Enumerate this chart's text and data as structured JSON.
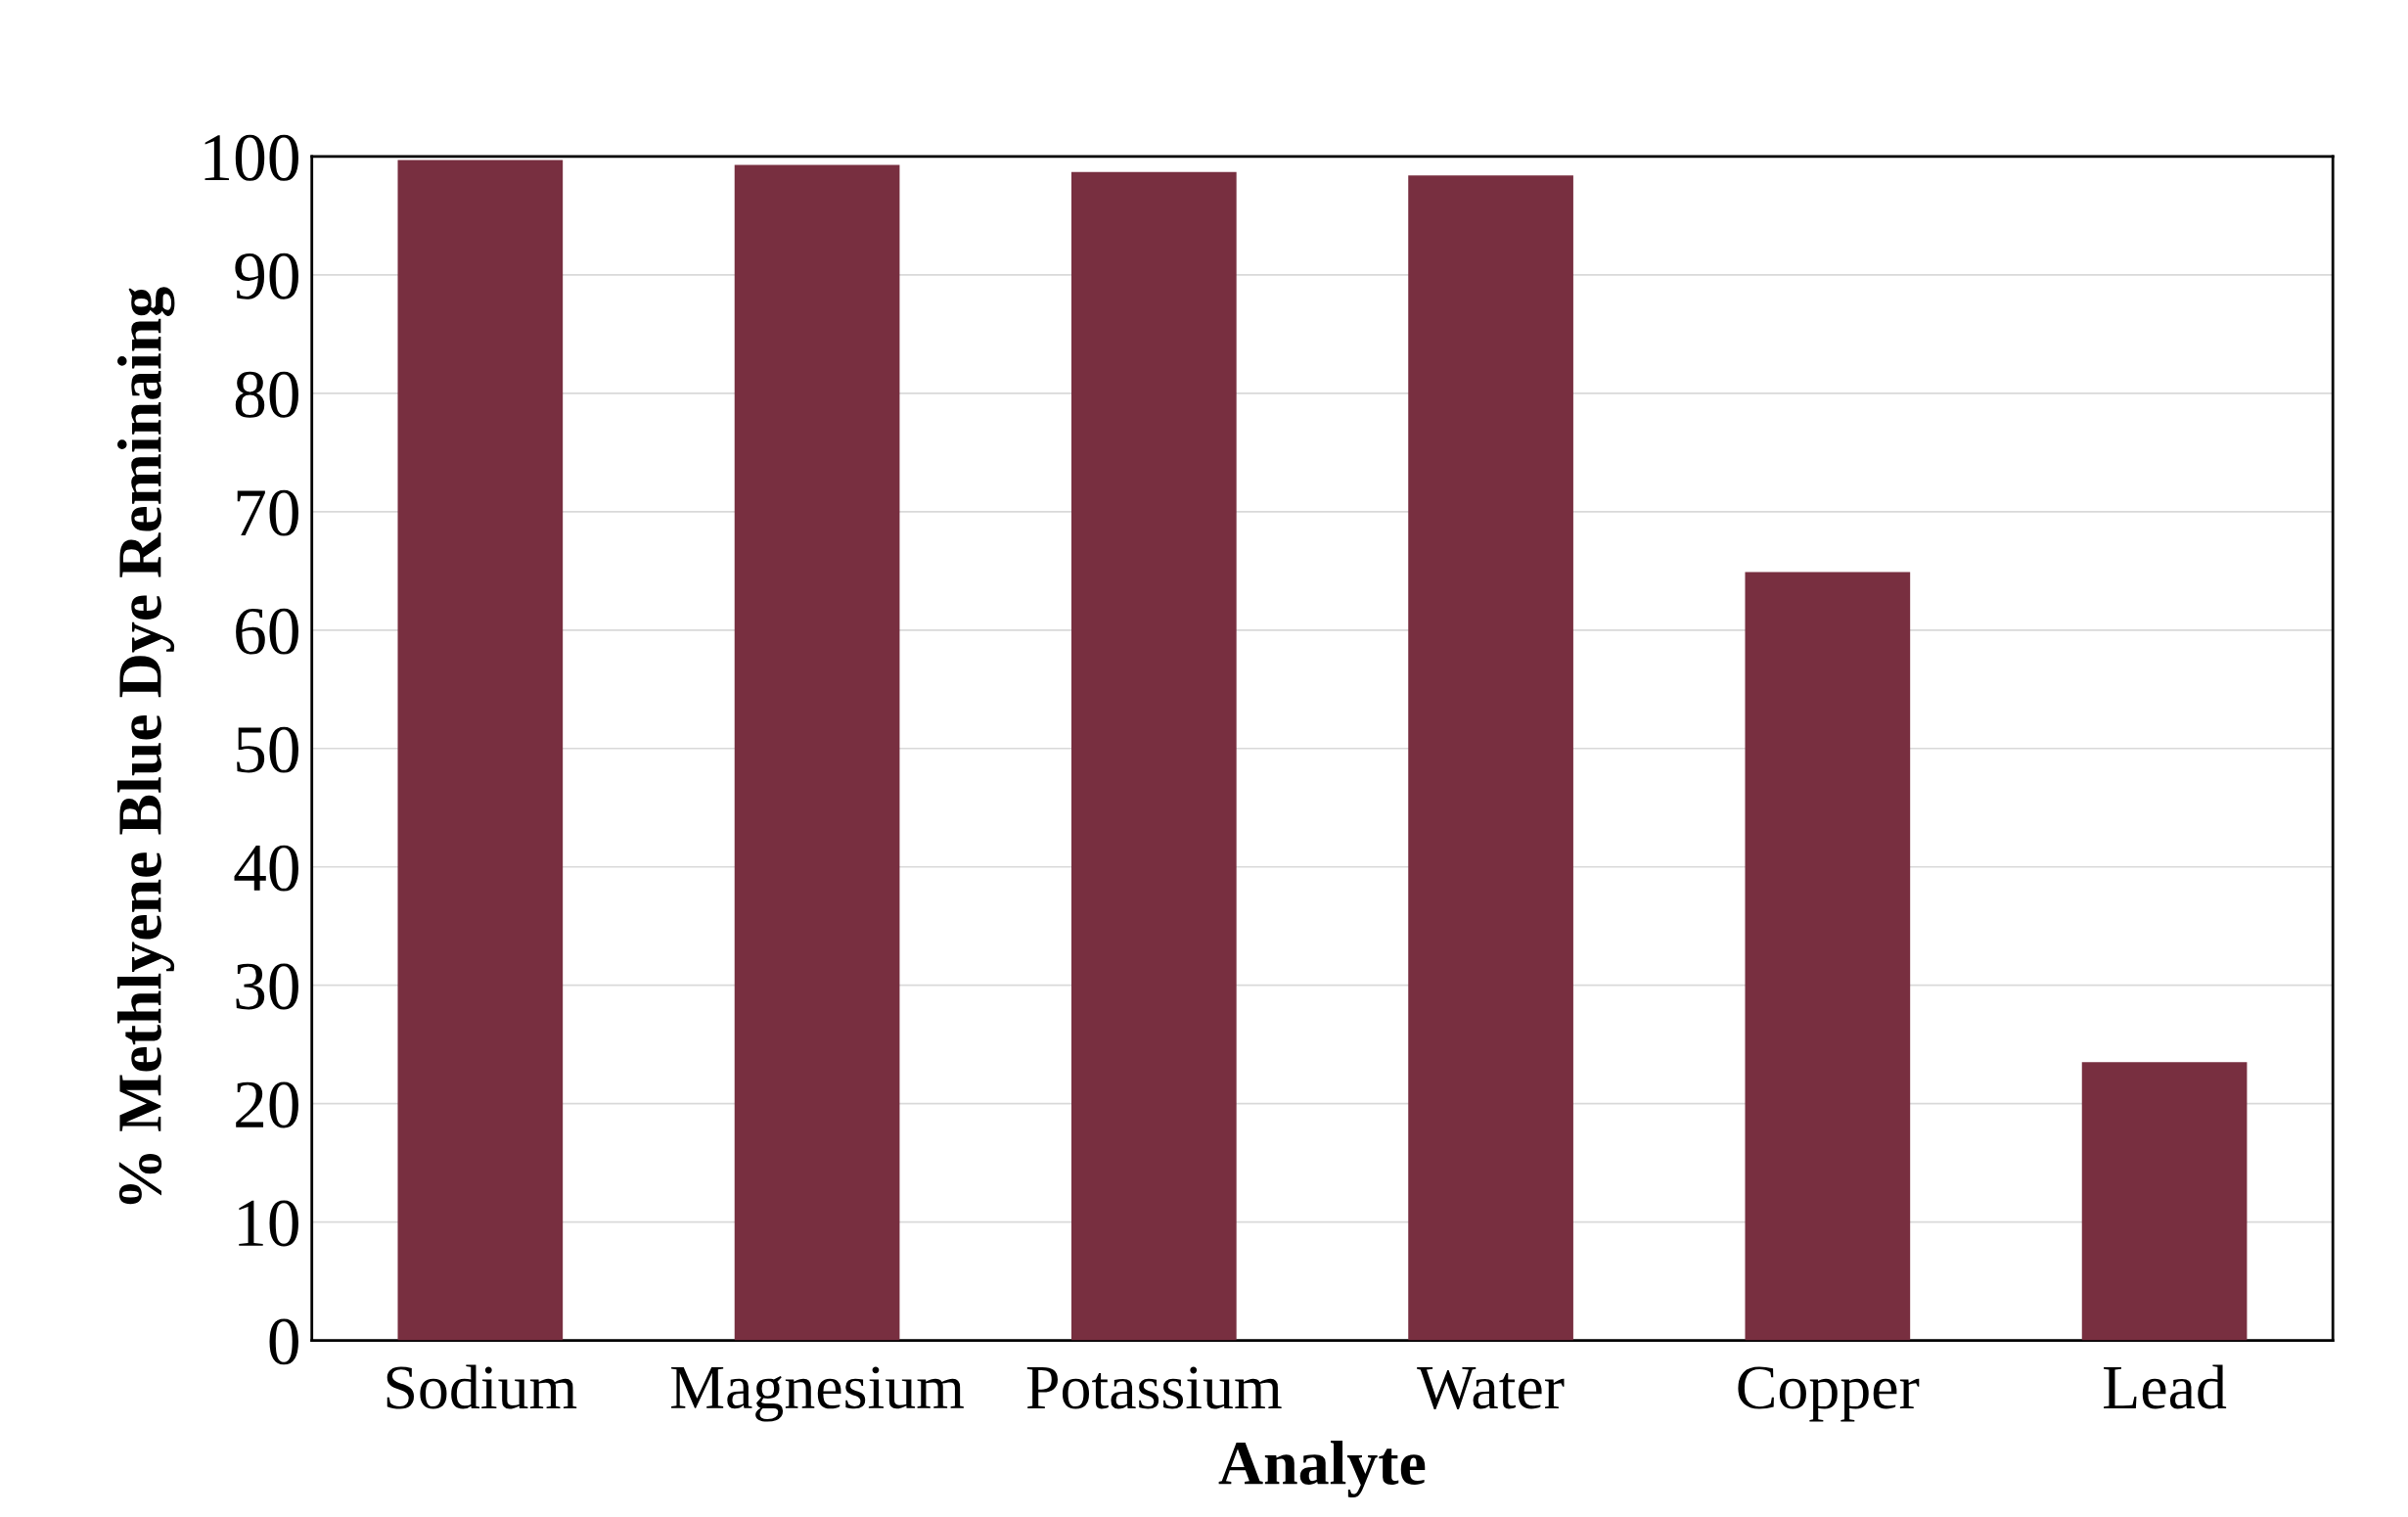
{
  "chart_data": {
    "type": "bar",
    "xlabel": "Analyte",
    "ylabel": "% Methlyene Blue Dye Reminaing",
    "categories": [
      "Sodium",
      "Magnesium",
      "Potassium",
      "Water",
      "Copper",
      "Lead"
    ],
    "values": [
      99.7,
      99.3,
      98.7,
      98.4,
      64.9,
      23.5
    ],
    "color": "#782f40",
    "ylim": [
      0,
      100
    ],
    "yticks": [
      0,
      10,
      20,
      30,
      40,
      50,
      60,
      70,
      80,
      90,
      100
    ],
    "grid": "y",
    "legend": false
  }
}
